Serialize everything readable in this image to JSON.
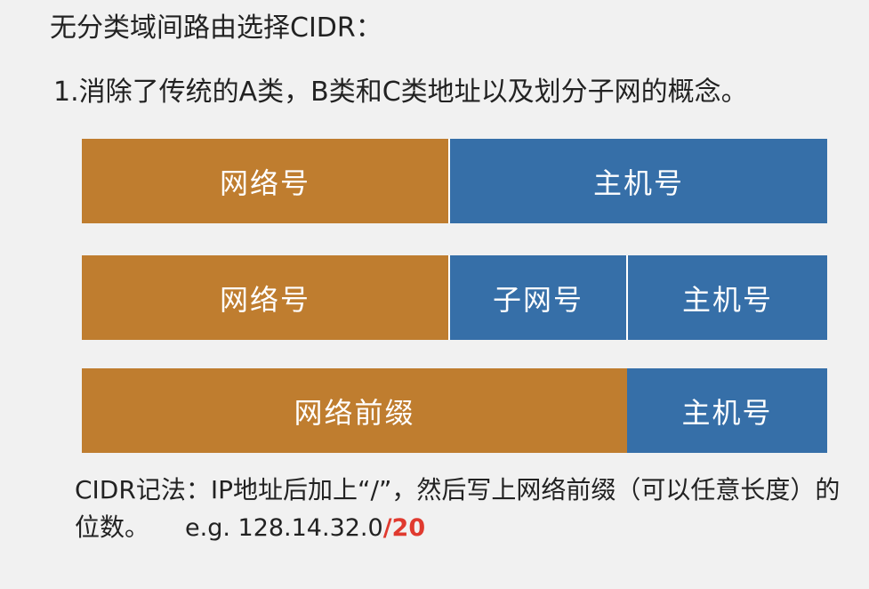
{
  "heading": "无分类域间路由选择CIDR：",
  "point": "1.消除了传统的A类，B类和C类地址以及划分子网的概念。",
  "bars": [
    {
      "segments": [
        {
          "label": "网络号",
          "color": "#bf7d2f"
        },
        {
          "label": "主机号",
          "color": "#366fa8"
        }
      ]
    },
    {
      "segments": [
        {
          "label": "网络号",
          "color": "#bf7d2f"
        },
        {
          "label": "子网号",
          "color": "#366fa8"
        },
        {
          "label": "主机号",
          "color": "#366fa8"
        }
      ]
    },
    {
      "segments": [
        {
          "label": "网络前缀",
          "color": "#bf7d2f"
        },
        {
          "label": "主机号",
          "color": "#366fa8"
        }
      ]
    }
  ],
  "note": {
    "text": "CIDR记法：IP地址后加上“/”，然后写上网络前缀（可以任意长度）的位数。",
    "example_ip": "e.g. 128.14.32.0",
    "example_prefix": "/20",
    "prefix_color": "#e03a2f"
  }
}
